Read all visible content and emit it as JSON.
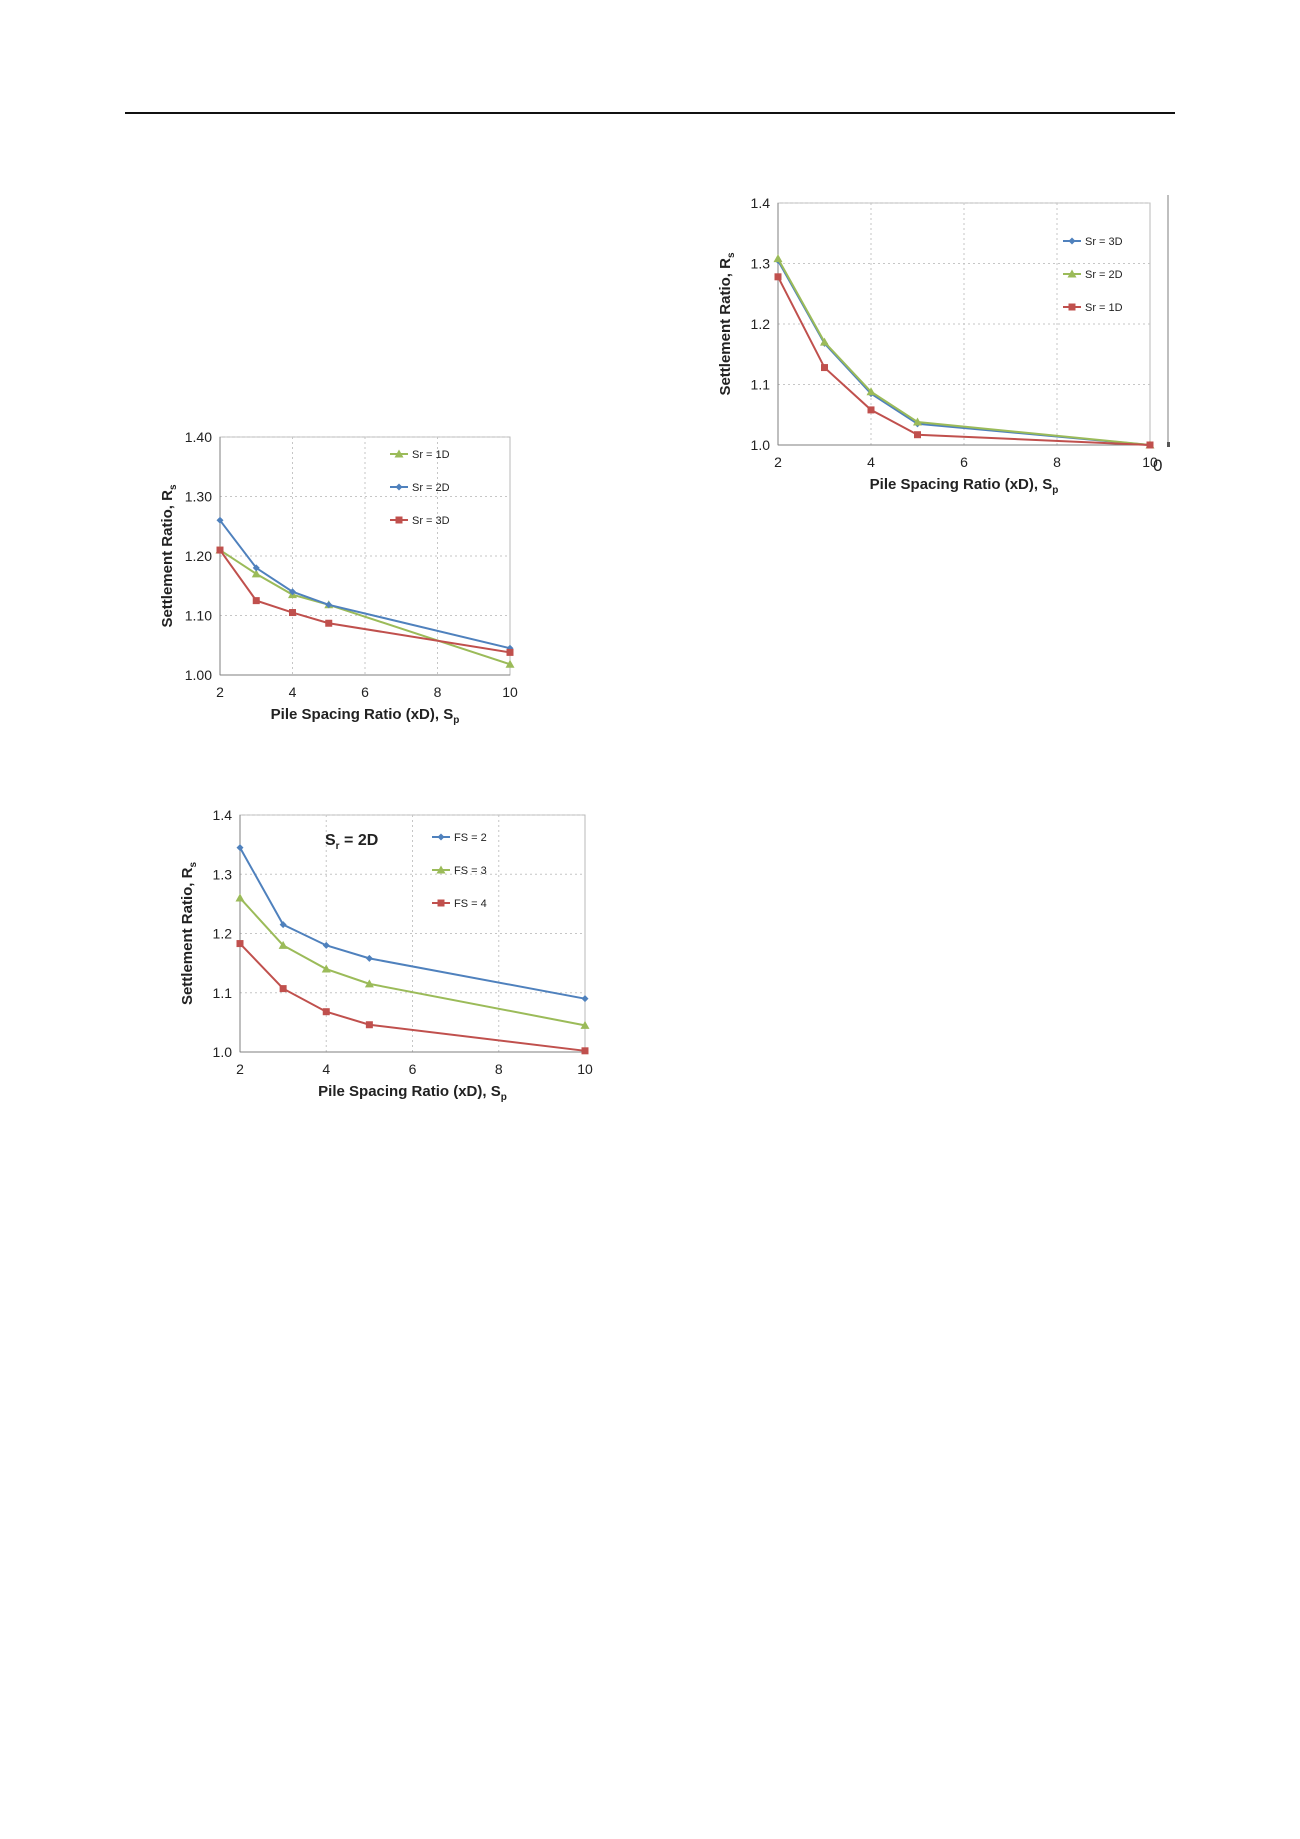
{
  "header_rule": true,
  "margin_glyph": "0",
  "chart_data": [
    {
      "id": "chart-a",
      "type": "line",
      "title": "",
      "xlabel": "Pile Spacing Ratio (xD), S",
      "xlabel_sub": "p",
      "ylabel": "Settlement Ratio, R",
      "ylabel_sub": "s",
      "xlim": [
        2,
        10
      ],
      "ylim": [
        1.0,
        1.4
      ],
      "xticks": [
        "2",
        "4",
        "6",
        "8",
        "10"
      ],
      "yticks": [
        "1.00",
        "1.10",
        "1.20",
        "1.30",
        "1.40"
      ],
      "ytick_values": [
        1.0,
        1.1,
        1.2,
        1.3,
        1.4
      ],
      "xtick_values": [
        2,
        4,
        6,
        8,
        10
      ],
      "grid": true,
      "legend_position": "top-right",
      "annotation": "",
      "series": [
        {
          "name": "Sr = 1D",
          "color": "#9bbb59",
          "marker": "triangle",
          "x": [
            2,
            3,
            4,
            5,
            10
          ],
          "y": [
            1.21,
            1.17,
            1.135,
            1.118,
            1.018
          ]
        },
        {
          "name": "Sr = 2D",
          "color": "#4f81bd",
          "marker": "diamond",
          "x": [
            2,
            3,
            4,
            5,
            10
          ],
          "y": [
            1.26,
            1.18,
            1.14,
            1.118,
            1.045
          ]
        },
        {
          "name": "Sr = 3D",
          "color": "#c0504d",
          "marker": "square",
          "x": [
            2,
            3,
            4,
            5,
            10
          ],
          "y": [
            1.21,
            1.125,
            1.105,
            1.087,
            1.038
          ]
        }
      ]
    },
    {
      "id": "chart-b",
      "type": "line",
      "title": "",
      "xlabel": "Pile Spacing Ratio (xD), S",
      "xlabel_sub": "p",
      "ylabel": "Settlement Ratio, R",
      "ylabel_sub": "s",
      "xlim": [
        2,
        10
      ],
      "ylim": [
        1.0,
        1.4
      ],
      "xticks": [
        "2",
        "4",
        "6",
        "8",
        "10"
      ],
      "yticks": [
        "1.0",
        "1.1",
        "1.2",
        "1.3",
        "1.4"
      ],
      "ytick_values": [
        1.0,
        1.1,
        1.2,
        1.3,
        1.4
      ],
      "xtick_values": [
        2,
        4,
        6,
        8,
        10
      ],
      "grid": true,
      "legend_position": "top-right",
      "annotation": "S",
      "annotation_sub": "r",
      "annotation_tail": " = 2D",
      "series": [
        {
          "name": "FS = 2",
          "color": "#4f81bd",
          "marker": "diamond",
          "x": [
            2,
            3,
            4,
            5,
            10
          ],
          "y": [
            1.345,
            1.215,
            1.18,
            1.158,
            1.09
          ]
        },
        {
          "name": "FS = 3",
          "color": "#9bbb59",
          "marker": "triangle",
          "x": [
            2,
            3,
            4,
            5,
            10
          ],
          "y": [
            1.26,
            1.18,
            1.14,
            1.115,
            1.045
          ]
        },
        {
          "name": "FS = 4",
          "color": "#c0504d",
          "marker": "square",
          "x": [
            2,
            3,
            4,
            5,
            10
          ],
          "y": [
            1.183,
            1.107,
            1.068,
            1.046,
            1.002
          ]
        }
      ]
    },
    {
      "id": "chart-c",
      "type": "line",
      "title": "",
      "xlabel": "Pile Spacing Ratio (xD), S",
      "xlabel_sub": "p",
      "ylabel": "Settlement Ratio, R",
      "ylabel_sub": "s",
      "xlim": [
        2,
        10
      ],
      "ylim": [
        1.0,
        1.4
      ],
      "xticks": [
        "2",
        "4",
        "6",
        "8",
        "10"
      ],
      "yticks": [
        "1.0",
        "1.1",
        "1.2",
        "1.3",
        "1.4"
      ],
      "ytick_values": [
        1.0,
        1.1,
        1.2,
        1.3,
        1.4
      ],
      "xtick_values": [
        2,
        4,
        6,
        8,
        10
      ],
      "grid": true,
      "legend_position": "top-right",
      "annotation": "",
      "series": [
        {
          "name": "Sr = 3D",
          "color": "#4f81bd",
          "marker": "diamond",
          "x": [
            2,
            3,
            4,
            5,
            10
          ],
          "y": [
            1.305,
            1.168,
            1.085,
            1.035,
            1.0
          ]
        },
        {
          "name": "Sr = 2D",
          "color": "#9bbb59",
          "marker": "triangle",
          "x": [
            2,
            3,
            4,
            5,
            10
          ],
          "y": [
            1.308,
            1.17,
            1.088,
            1.038,
            1.0
          ]
        },
        {
          "name": "Sr = 1D",
          "color": "#c0504d",
          "marker": "square",
          "x": [
            2,
            3,
            4,
            5,
            10
          ],
          "y": [
            1.278,
            1.128,
            1.058,
            1.017,
            1.0
          ]
        }
      ]
    }
  ]
}
